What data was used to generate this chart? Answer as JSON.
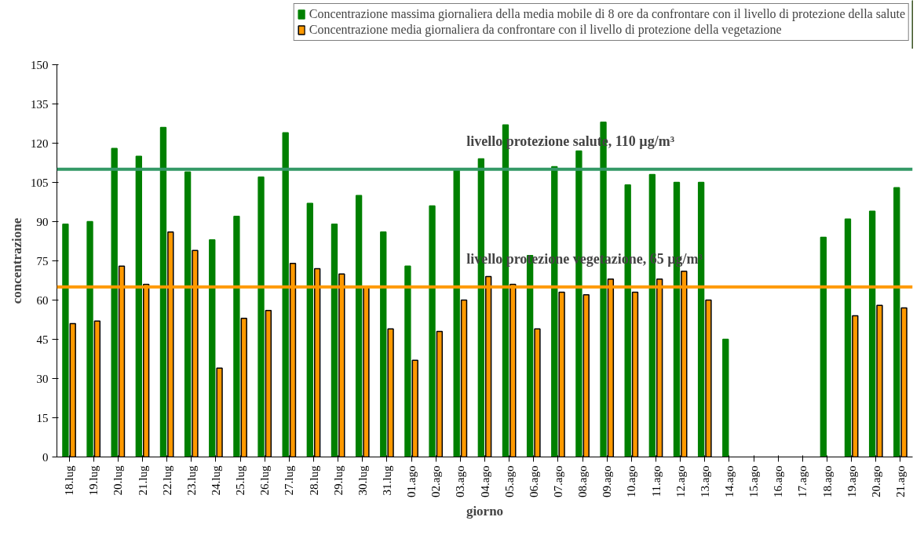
{
  "chart_data": {
    "type": "bar",
    "xlabel": "giorno",
    "ylabel": "concentrazione",
    "categories": [
      "18.lug",
      "19.lug",
      "20.lug",
      "21.lug",
      "22.lug",
      "23.lug",
      "24.lug",
      "25.lug",
      "26.lug",
      "27.lug",
      "28.lug",
      "29.lug",
      "30.lug",
      "31.lug",
      "01.ago",
      "02.ago",
      "03.ago",
      "04.ago",
      "05.ago",
      "06.ago",
      "07.ago",
      "08.ago",
      "09.ago",
      "10.ago",
      "11.ago",
      "12.ago",
      "13.ago",
      "14.ago",
      "15.ago",
      "16.ago",
      "17.ago",
      "18.ago",
      "19.ago",
      "20.ago",
      "21.ago"
    ],
    "series": [
      {
        "name": "Concentrazione massima giornaliera della media mobile di 8 ore da confrontare con il livello di protezione della salute",
        "color": "#008000",
        "values": [
          89,
          90,
          118,
          115,
          126,
          109,
          83,
          92,
          107,
          124,
          97,
          89,
          100,
          86,
          73,
          96,
          110,
          114,
          127,
          77,
          111,
          117,
          128,
          104,
          108,
          105,
          105,
          45,
          null,
          null,
          null,
          84,
          91,
          94,
          103
        ]
      },
      {
        "name": "Concentrazione media giornaliera da confrontare con il livello di protezione della vegetazione",
        "color": "#ff9900",
        "values": [
          51,
          52,
          73,
          66,
          86,
          79,
          34,
          53,
          56,
          74,
          72,
          70,
          65,
          49,
          37,
          48,
          60,
          69,
          66,
          49,
          63,
          62,
          68,
          63,
          68,
          71,
          60,
          null,
          null,
          null,
          null,
          null,
          54,
          58,
          57
        ]
      }
    ],
    "ylim": [
      0,
      150
    ],
    "yticks": [
      0,
      15,
      30,
      45,
      60,
      75,
      90,
      105,
      120,
      135,
      150
    ],
    "grid": false,
    "legend": "top",
    "ref_lines": [
      {
        "axis": "y",
        "value": 110,
        "label": "livello protezione salute,     110 µg/m³",
        "color": "#339966"
      },
      {
        "axis": "y",
        "value": 65,
        "label": "livello protezione vegetazione,     65 µg/m³",
        "color": "#ff9900"
      }
    ]
  }
}
